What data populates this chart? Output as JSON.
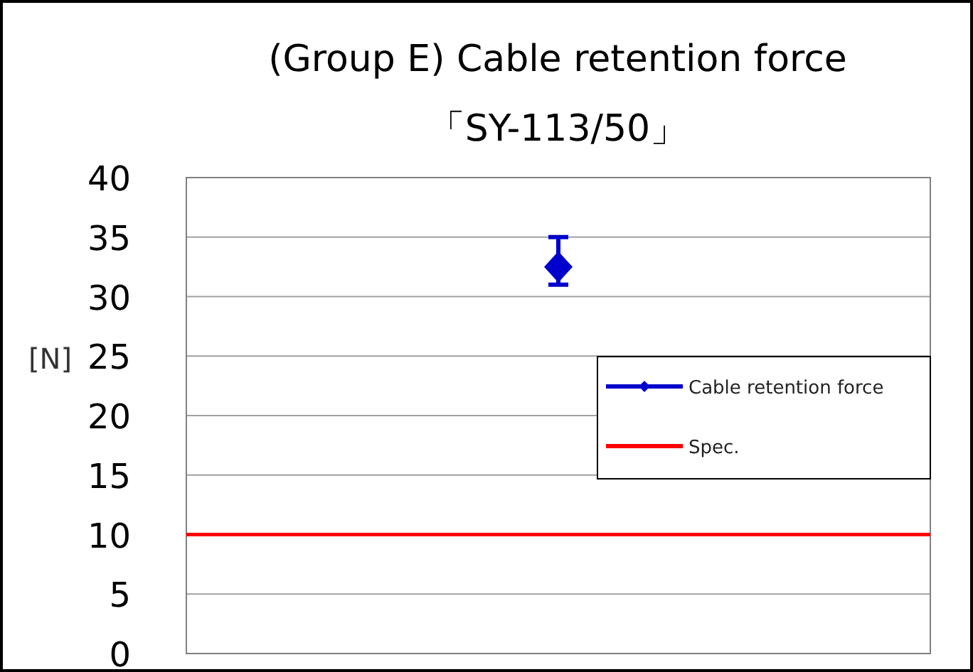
{
  "chart_data": {
    "type": "line",
    "title": "(Group E) Cable retention force",
    "subtitle": "「SY-113/50」",
    "ylabel": "[N]",
    "categories": [
      null
    ],
    "series": [
      {
        "name": "Cable retention force",
        "color": "#0000cc",
        "values": [
          32.5
        ],
        "errors": [
          [
            31,
            35
          ]
        ]
      }
    ],
    "ref_lines": [
      {
        "axis": "y",
        "value": 10,
        "label": "Spec.",
        "color": "#ff0000"
      }
    ],
    "ylim": [
      0,
      40
    ],
    "yticks": [
      0,
      5,
      10,
      15,
      20,
      25,
      30,
      35,
      40
    ],
    "grid": "y",
    "legend": "right",
    "marker": "diamond"
  }
}
